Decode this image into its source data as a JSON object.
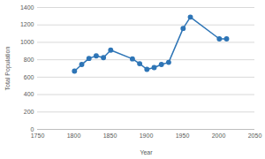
{
  "chart_data": {
    "type": "line",
    "x_label": "Year",
    "y_label": "Total Population",
    "x": [
      1801,
      1811,
      1821,
      1831,
      1841,
      1851,
      1881,
      1891,
      1901,
      1911,
      1921,
      1931,
      1951,
      1961,
      2001,
      2011
    ],
    "series": [
      {
        "name": "Total Population",
        "color": "#2e75b6",
        "marker": "circle",
        "line_style": "solid",
        "values": [
          670,
          745,
          815,
          845,
          825,
          910,
          810,
          755,
          690,
          710,
          745,
          770,
          1160,
          1290,
          1040,
          1040
        ]
      }
    ],
    "xlim": [
      1750,
      2050
    ],
    "xticks": [
      1750,
      1800,
      1850,
      1900,
      1950,
      2000,
      2050
    ],
    "ylim": [
      0,
      1400
    ],
    "yticks": [
      0,
      200,
      400,
      600,
      800,
      1000,
      1200,
      1400
    ],
    "grid": true
  }
}
